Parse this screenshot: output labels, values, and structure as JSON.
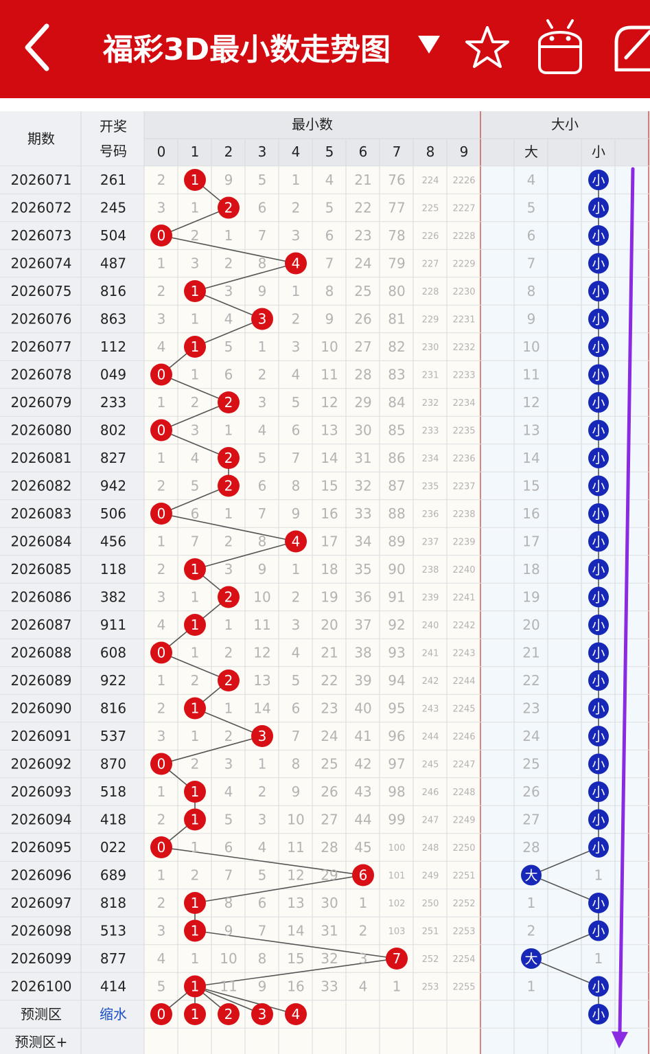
{
  "header": {
    "title": "福彩3D最小数走势图",
    "dropdown_icon": "triangle-down-icon",
    "star_icon": "star-icon",
    "android_icon": "android-icon",
    "share_icon": "share-icon",
    "bg": "#d20b10"
  },
  "table": {
    "col_period": "期数",
    "col_draw_1": "开奖",
    "col_draw_2": "号码",
    "group_min": "最小数",
    "group_size": "大小",
    "digits": [
      "0",
      "1",
      "2",
      "3",
      "4",
      "5",
      "6",
      "7",
      "8",
      "9"
    ],
    "size_big": "大",
    "size_small": "小"
  },
  "rows": [
    {
      "period": "2026071",
      "draw": "261",
      "min": 1,
      "miss": [
        2,
        null,
        9,
        5,
        1,
        4,
        21,
        76,
        224,
        2226
      ],
      "size": "小",
      "big_miss": "4"
    },
    {
      "period": "2026072",
      "draw": "245",
      "min": 2,
      "miss": [
        3,
        1,
        null,
        6,
        2,
        5,
        22,
        77,
        225,
        2227
      ],
      "size": "小",
      "big_miss": "5"
    },
    {
      "period": "2026073",
      "draw": "504",
      "min": 0,
      "miss": [
        null,
        2,
        1,
        7,
        3,
        6,
        23,
        78,
        226,
        2228
      ],
      "size": "小",
      "big_miss": "6"
    },
    {
      "period": "2026074",
      "draw": "487",
      "min": 4,
      "miss": [
        1,
        3,
        2,
        8,
        null,
        7,
        24,
        79,
        227,
        2229
      ],
      "size": "小",
      "big_miss": "7"
    },
    {
      "period": "2026075",
      "draw": "816",
      "min": 1,
      "miss": [
        2,
        null,
        3,
        9,
        1,
        8,
        25,
        80,
        228,
        2230
      ],
      "size": "小",
      "big_miss": "8"
    },
    {
      "period": "2026076",
      "draw": "863",
      "min": 3,
      "miss": [
        3,
        1,
        4,
        null,
        2,
        9,
        26,
        81,
        229,
        2231
      ],
      "size": "小",
      "big_miss": "9"
    },
    {
      "period": "2026077",
      "draw": "112",
      "min": 1,
      "miss": [
        4,
        null,
        5,
        1,
        3,
        10,
        27,
        82,
        230,
        2232
      ],
      "size": "小",
      "big_miss": "10"
    },
    {
      "period": "2026078",
      "draw": "049",
      "min": 0,
      "miss": [
        null,
        1,
        6,
        2,
        4,
        11,
        28,
        83,
        231,
        2233
      ],
      "size": "小",
      "big_miss": "11"
    },
    {
      "period": "2026079",
      "draw": "233",
      "min": 2,
      "miss": [
        1,
        2,
        null,
        3,
        5,
        12,
        29,
        84,
        232,
        2234
      ],
      "size": "小",
      "big_miss": "12"
    },
    {
      "period": "2026080",
      "draw": "802",
      "min": 0,
      "miss": [
        null,
        3,
        1,
        4,
        6,
        13,
        30,
        85,
        233,
        2235
      ],
      "size": "小",
      "big_miss": "13"
    },
    {
      "period": "2026081",
      "draw": "827",
      "min": 2,
      "miss": [
        1,
        4,
        null,
        5,
        7,
        14,
        31,
        86,
        234,
        2236
      ],
      "size": "小",
      "big_miss": "14"
    },
    {
      "period": "2026082",
      "draw": "942",
      "min": 2,
      "miss": [
        2,
        5,
        null,
        6,
        8,
        15,
        32,
        87,
        235,
        2237
      ],
      "size": "小",
      "big_miss": "15"
    },
    {
      "period": "2026083",
      "draw": "506",
      "min": 0,
      "miss": [
        null,
        6,
        1,
        7,
        9,
        16,
        33,
        88,
        236,
        2238
      ],
      "size": "小",
      "big_miss": "16"
    },
    {
      "period": "2026084",
      "draw": "456",
      "min": 4,
      "miss": [
        1,
        7,
        2,
        8,
        null,
        17,
        34,
        89,
        237,
        2239
      ],
      "size": "小",
      "big_miss": "17"
    },
    {
      "period": "2026085",
      "draw": "118",
      "min": 1,
      "miss": [
        2,
        null,
        3,
        9,
        1,
        18,
        35,
        90,
        238,
        2240
      ],
      "size": "小",
      "big_miss": "18"
    },
    {
      "period": "2026086",
      "draw": "382",
      "min": 2,
      "miss": [
        3,
        1,
        null,
        10,
        2,
        19,
        36,
        91,
        239,
        2241
      ],
      "size": "小",
      "big_miss": "19"
    },
    {
      "period": "2026087",
      "draw": "911",
      "min": 1,
      "miss": [
        4,
        null,
        1,
        11,
        3,
        20,
        37,
        92,
        240,
        2242
      ],
      "size": "小",
      "big_miss": "20"
    },
    {
      "period": "2026088",
      "draw": "608",
      "min": 0,
      "miss": [
        null,
        1,
        2,
        12,
        4,
        21,
        38,
        93,
        241,
        2243
      ],
      "size": "小",
      "big_miss": "21"
    },
    {
      "period": "2026089",
      "draw": "922",
      "min": 2,
      "miss": [
        1,
        2,
        null,
        13,
        5,
        22,
        39,
        94,
        242,
        2244
      ],
      "size": "小",
      "big_miss": "22"
    },
    {
      "period": "2026090",
      "draw": "816",
      "min": 1,
      "miss": [
        2,
        null,
        1,
        14,
        6,
        23,
        40,
        95,
        243,
        2245
      ],
      "size": "小",
      "big_miss": "23"
    },
    {
      "period": "2026091",
      "draw": "537",
      "min": 3,
      "miss": [
        3,
        1,
        2,
        null,
        7,
        24,
        41,
        96,
        244,
        2246
      ],
      "size": "小",
      "big_miss": "24"
    },
    {
      "period": "2026092",
      "draw": "870",
      "min": 0,
      "miss": [
        null,
        2,
        3,
        1,
        8,
        25,
        42,
        97,
        245,
        2247
      ],
      "size": "小",
      "big_miss": "25"
    },
    {
      "period": "2026093",
      "draw": "518",
      "min": 1,
      "miss": [
        1,
        null,
        4,
        2,
        9,
        26,
        43,
        98,
        246,
        2248
      ],
      "size": "小",
      "big_miss": "26"
    },
    {
      "period": "2026094",
      "draw": "418",
      "min": 1,
      "miss": [
        2,
        null,
        5,
        3,
        10,
        27,
        44,
        99,
        247,
        2249
      ],
      "size": "小",
      "big_miss": "27"
    },
    {
      "period": "2026095",
      "draw": "022",
      "min": 0,
      "miss": [
        null,
        1,
        6,
        4,
        11,
        28,
        45,
        100,
        248,
        2250
      ],
      "size": "小",
      "big_miss": "28"
    },
    {
      "period": "2026096",
      "draw": "689",
      "min": 6,
      "miss": [
        1,
        2,
        7,
        5,
        12,
        29,
        null,
        101,
        249,
        2251
      ],
      "size": "大",
      "small_miss": "1"
    },
    {
      "period": "2026097",
      "draw": "818",
      "min": 1,
      "miss": [
        2,
        null,
        8,
        6,
        13,
        30,
        1,
        102,
        250,
        2252
      ],
      "size": "小",
      "big_miss": "1"
    },
    {
      "period": "2026098",
      "draw": "513",
      "min": 1,
      "miss": [
        3,
        null,
        9,
        7,
        14,
        31,
        2,
        103,
        251,
        2253
      ],
      "size": "小",
      "big_miss": "2"
    },
    {
      "period": "2026099",
      "draw": "877",
      "min": 7,
      "miss": [
        4,
        1,
        10,
        8,
        15,
        32,
        3,
        null,
        252,
        2254
      ],
      "size": "大",
      "small_miss": "1"
    },
    {
      "period": "2026100",
      "draw": "414",
      "min": 1,
      "miss": [
        5,
        null,
        11,
        9,
        16,
        33,
        4,
        1,
        253,
        2255
      ],
      "size": "小",
      "big_miss": "1"
    }
  ],
  "predict": {
    "label": "预测区",
    "draw_text": "缩水",
    "balls": [
      "0",
      "1",
      "2",
      "3",
      "4"
    ],
    "size": "小"
  },
  "predict_plus": {
    "label": "预测区+"
  },
  "colors": {
    "red_ball": "#d90f16",
    "blue_ball": "#1728b8",
    "scroll_arrow": "#8a2be2"
  }
}
